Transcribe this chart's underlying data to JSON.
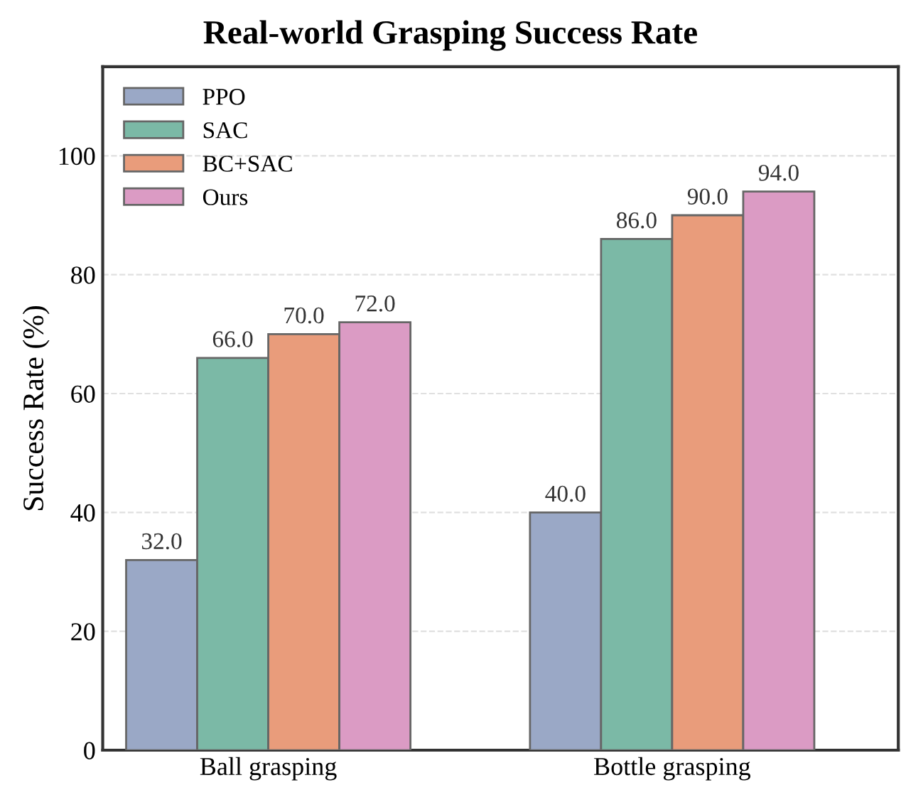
{
  "chart_data": {
    "type": "bar",
    "title": "Real-world Grasping Success Rate",
    "ylabel": "Success Rate (%)",
    "categories": [
      "Ball grasping",
      "Bottle grasping"
    ],
    "series": [
      {
        "name": "PPO",
        "color": "#9aa8c6",
        "values": [
          32.0,
          40.0
        ],
        "value_labels": [
          "32.0",
          "40.0"
        ]
      },
      {
        "name": "SAC",
        "color": "#7bb9a6",
        "values": [
          66.0,
          86.0
        ],
        "value_labels": [
          "66.0",
          "86.0"
        ]
      },
      {
        "name": "BC+SAC",
        "color": "#e99c7b",
        "values": [
          70.0,
          90.0
        ],
        "value_labels": [
          "70.0",
          "90.0"
        ]
      },
      {
        "name": "Ours",
        "color": "#db9bc4",
        "values": [
          72.0,
          94.0
        ],
        "value_labels": [
          "72.0",
          "94.0"
        ]
      }
    ],
    "ylim": [
      0,
      115
    ],
    "yticks": [
      0,
      20,
      40,
      60,
      80,
      100
    ],
    "grid": "y",
    "legend": "top left"
  }
}
